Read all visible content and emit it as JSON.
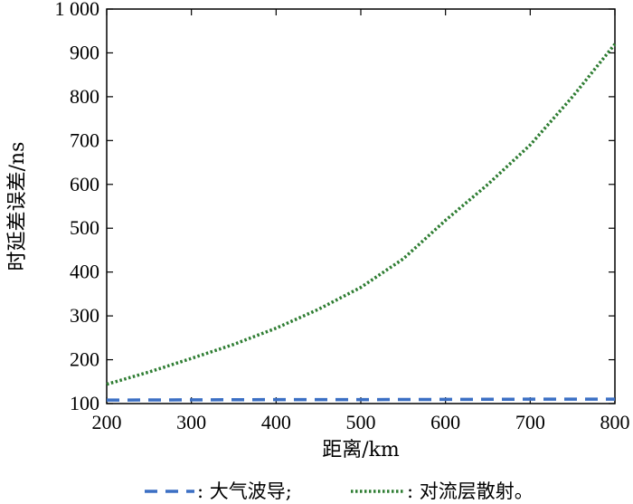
{
  "chart_data": {
    "type": "line",
    "xlabel": "距离/km",
    "ylabel": "时延差误差/ns",
    "xlim": [
      200,
      800
    ],
    "ylim": [
      100,
      1000
    ],
    "xticks": [
      200,
      300,
      400,
      500,
      600,
      700,
      800
    ],
    "yticks": [
      100,
      200,
      300,
      400,
      500,
      600,
      700,
      800,
      900,
      1000
    ],
    "xtick_labels": [
      "200",
      "300",
      "400",
      "500",
      "600",
      "700",
      "800"
    ],
    "ytick_labels": [
      "100",
      "200",
      "300",
      "400",
      "500",
      "600",
      "700",
      "800",
      "900",
      "1 000"
    ],
    "grid": false,
    "legend_position": "bottom",
    "series": [
      {
        "name": "大气波导",
        "legend_label": ": 大气波导;",
        "style": "dashed",
        "color": "#3b6fc4",
        "x": [
          200,
          300,
          400,
          500,
          600,
          700,
          800
        ],
        "y": [
          108,
          108.5,
          109,
          109,
          109.5,
          110,
          110
        ]
      },
      {
        "name": "对流层散射",
        "legend_label": ": 对流层散射。",
        "style": "dotted",
        "color": "#2e7d32",
        "x": [
          200,
          250,
          300,
          350,
          400,
          450,
          500,
          550,
          600,
          650,
          700,
          750,
          800
        ],
        "y": [
          144,
          172,
          203,
          235,
          272,
          315,
          365,
          430,
          518,
          600,
          690,
          800,
          920
        ]
      }
    ]
  }
}
